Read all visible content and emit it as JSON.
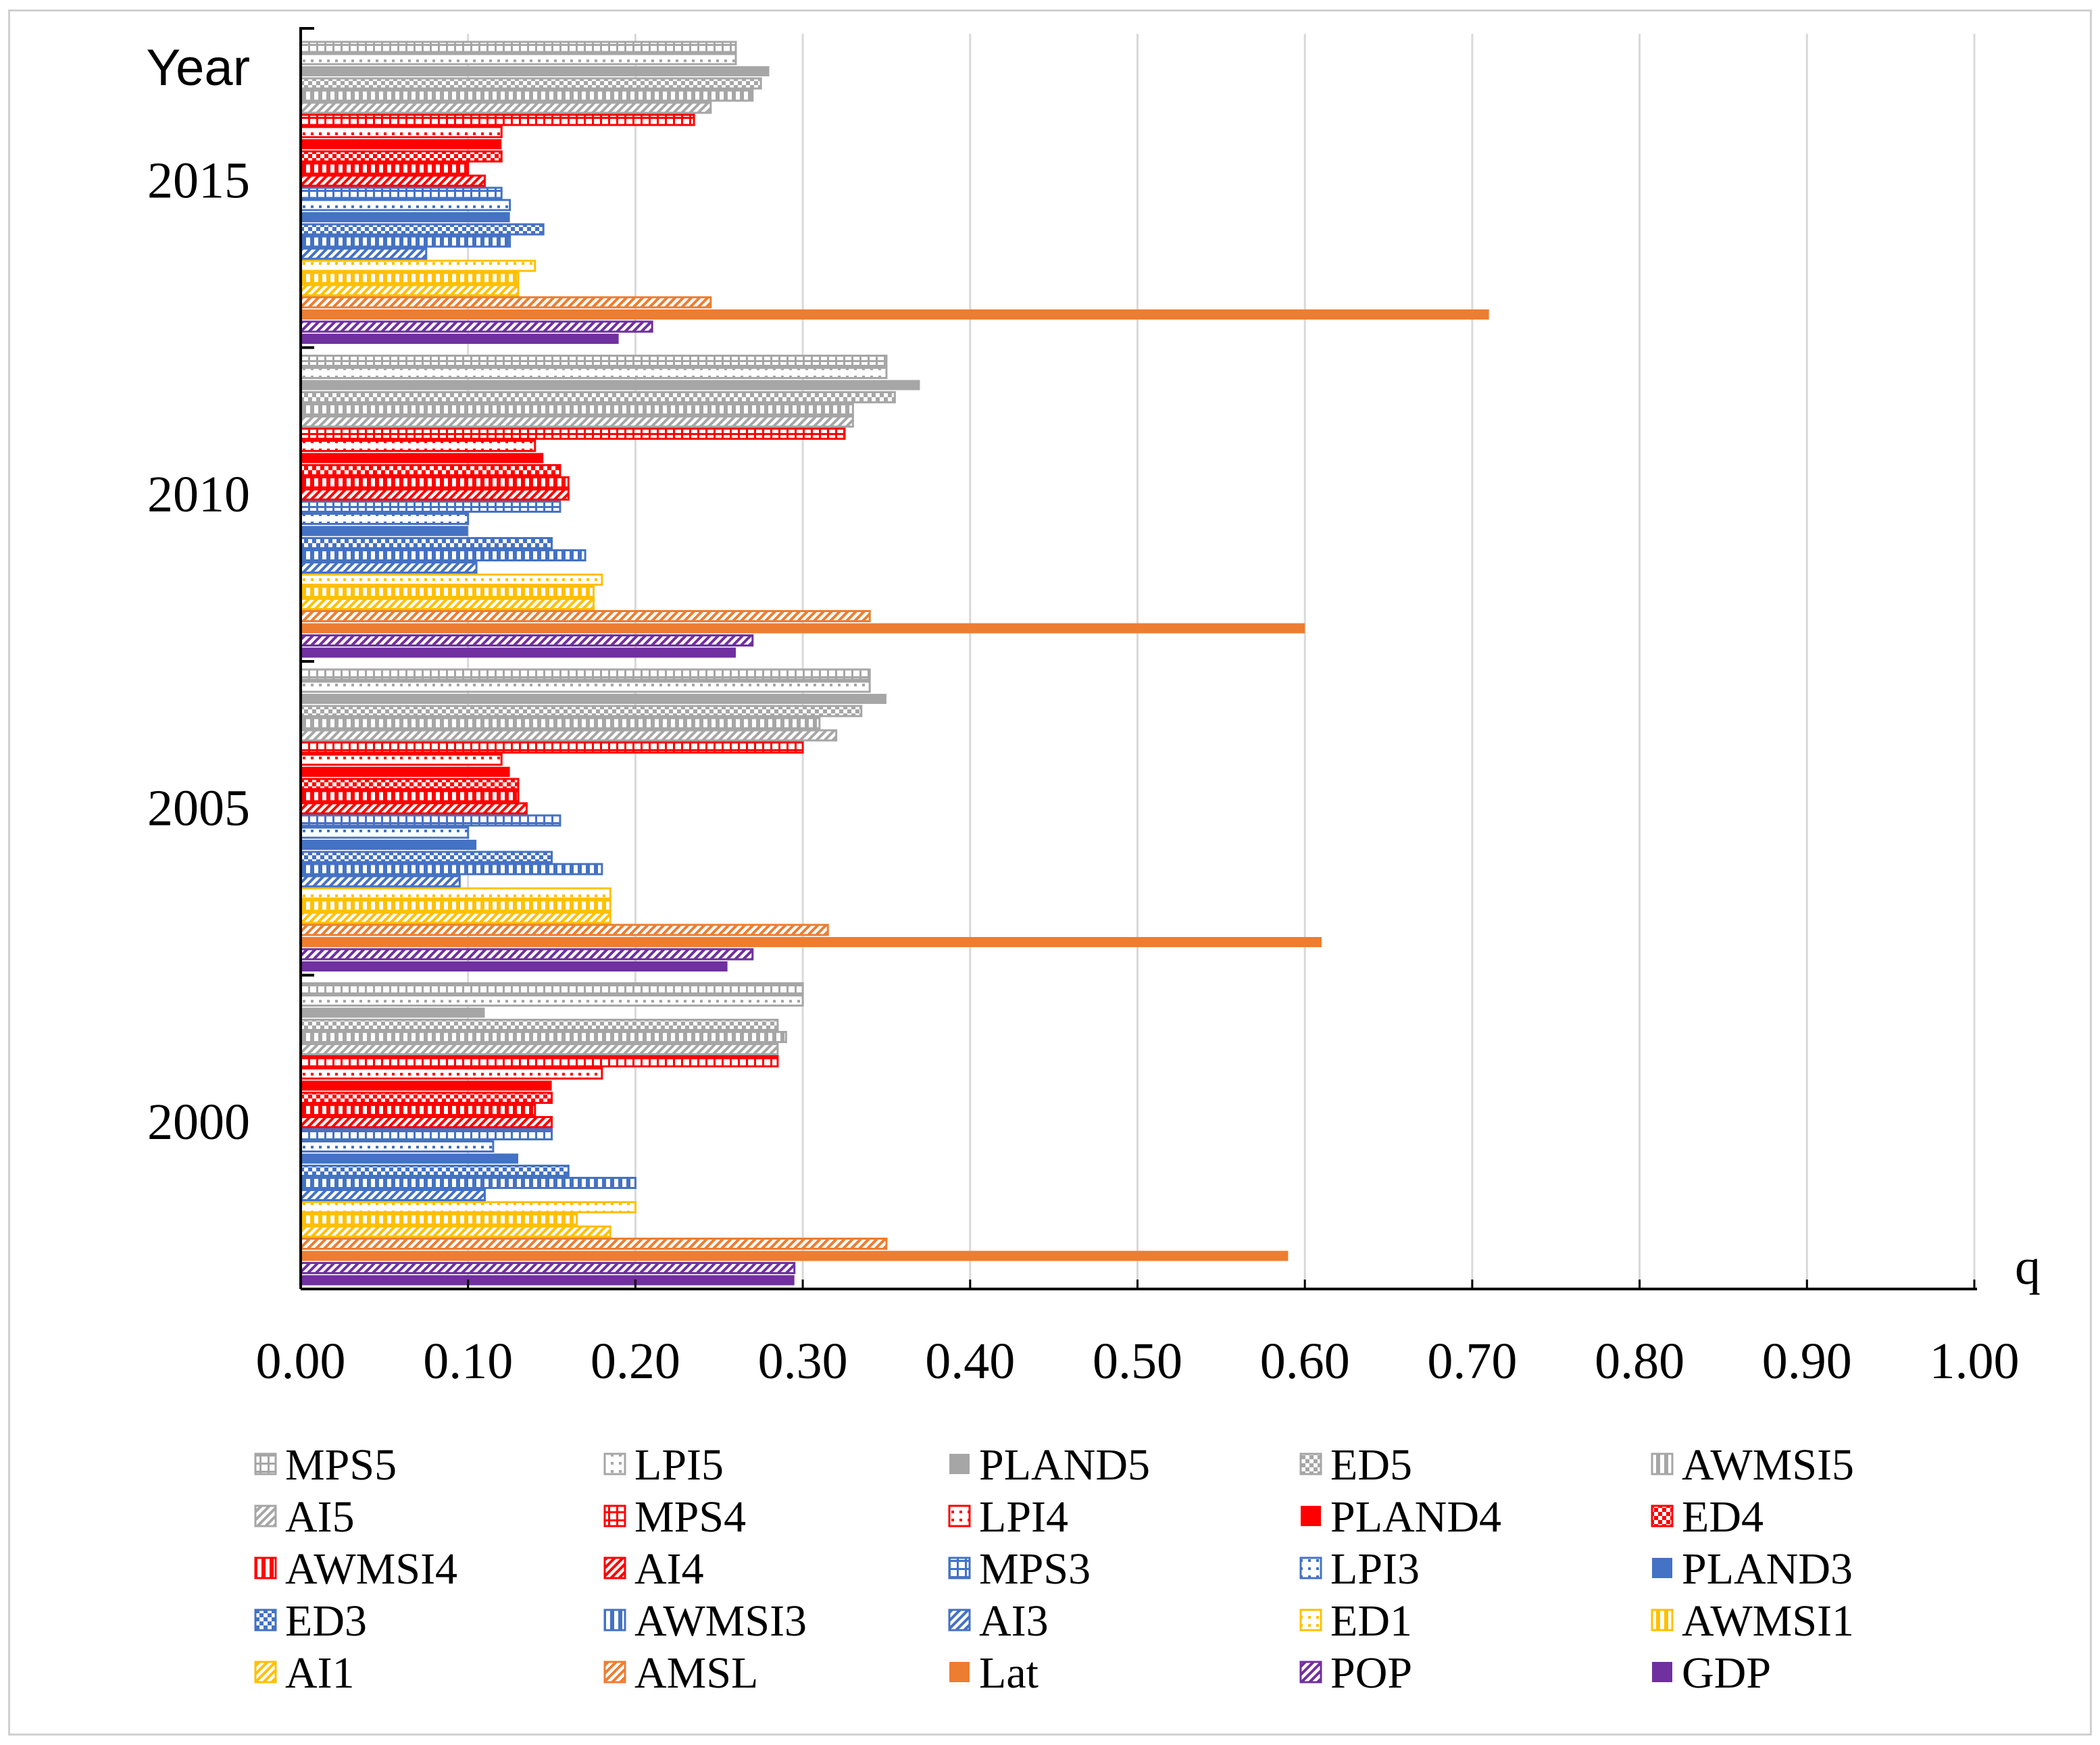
{
  "chart_data": {
    "type": "bar",
    "orientation": "horizontal",
    "xlabel": "q",
    "ylabel": "Year",
    "xlim": [
      0,
      1
    ],
    "xticks": [
      "0.00",
      "0.10",
      "0.20",
      "0.30",
      "0.40",
      "0.50",
      "0.60",
      "0.70",
      "0.80",
      "0.90",
      "1.00"
    ],
    "grid": true,
    "legend_position": "bottom",
    "categories": [
      "2015",
      "2010",
      "2005",
      "2000"
    ],
    "series": [
      {
        "name": "MPS5",
        "color": "#a6a6a6",
        "pattern": "outline-bracket",
        "values": [
          0.26,
          0.35,
          0.34,
          0.3
        ]
      },
      {
        "name": "LPI5",
        "color": "#a6a6a6",
        "pattern": "outline-dots",
        "values": [
          0.26,
          0.35,
          0.34,
          0.3
        ]
      },
      {
        "name": "PLAND5",
        "color": "#a6a6a6",
        "pattern": "solid",
        "values": [
          0.28,
          0.37,
          0.35,
          0.11
        ]
      },
      {
        "name": "ED5",
        "color": "#a6a6a6",
        "pattern": "checker",
        "values": [
          0.275,
          0.355,
          0.335,
          0.285
        ]
      },
      {
        "name": "AWMSI5",
        "color": "#a6a6a6",
        "pattern": "vstripe",
        "values": [
          0.27,
          0.33,
          0.31,
          0.29
        ]
      },
      {
        "name": "AI5",
        "color": "#a6a6a6",
        "pattern": "diagonal",
        "values": [
          0.245,
          0.33,
          0.32,
          0.285
        ]
      },
      {
        "name": "MPS4",
        "color": "#ff0000",
        "pattern": "outline-bracket",
        "values": [
          0.235,
          0.325,
          0.3,
          0.285
        ]
      },
      {
        "name": "LPI4",
        "color": "#ff0000",
        "pattern": "outline-dots",
        "values": [
          0.12,
          0.14,
          0.12,
          0.18
        ]
      },
      {
        "name": "PLAND4",
        "color": "#ff0000",
        "pattern": "solid",
        "values": [
          0.12,
          0.145,
          0.125,
          0.15
        ]
      },
      {
        "name": "ED4",
        "color": "#ff0000",
        "pattern": "checker",
        "values": [
          0.12,
          0.155,
          0.13,
          0.15
        ]
      },
      {
        "name": "AWMSI4",
        "color": "#ff0000",
        "pattern": "vstripe",
        "values": [
          0.1,
          0.16,
          0.13,
          0.14
        ]
      },
      {
        "name": "AI4",
        "color": "#ff0000",
        "pattern": "diagonal",
        "values": [
          0.11,
          0.16,
          0.135,
          0.15
        ]
      },
      {
        "name": "MPS3",
        "color": "#4472c4",
        "pattern": "outline-bracket",
        "values": [
          0.12,
          0.155,
          0.155,
          0.15
        ]
      },
      {
        "name": "LPI3",
        "color": "#4472c4",
        "pattern": "outline-dots",
        "values": [
          0.125,
          0.1,
          0.1,
          0.115
        ]
      },
      {
        "name": "PLAND3",
        "color": "#4472c4",
        "pattern": "solid",
        "values": [
          0.125,
          0.1,
          0.105,
          0.13
        ]
      },
      {
        "name": "ED3",
        "color": "#4472c4",
        "pattern": "checker",
        "values": [
          0.145,
          0.15,
          0.15,
          0.16
        ]
      },
      {
        "name": "AWMSI3",
        "color": "#4472c4",
        "pattern": "vstripe",
        "values": [
          0.125,
          0.17,
          0.18,
          0.2
        ]
      },
      {
        "name": "AI3",
        "color": "#4472c4",
        "pattern": "diagonal",
        "values": [
          0.075,
          0.105,
          0.095,
          0.11
        ]
      },
      {
        "name": "ED1",
        "color": "#ffc000",
        "pattern": "outline-dots",
        "values": [
          0.14,
          0.18,
          0.185,
          0.2
        ]
      },
      {
        "name": "AWMSI1",
        "color": "#ffc000",
        "pattern": "vstripe",
        "values": [
          0.13,
          0.175,
          0.185,
          0.165
        ]
      },
      {
        "name": "AI1",
        "color": "#ffc000",
        "pattern": "diagonal",
        "values": [
          0.13,
          0.175,
          0.185,
          0.185
        ]
      },
      {
        "name": "AMSL",
        "color": "#ed7d31",
        "pattern": "diagonal",
        "values": [
          0.245,
          0.34,
          0.315,
          0.35
        ]
      },
      {
        "name": "Lat",
        "color": "#ed7d31",
        "pattern": "solid",
        "values": [
          0.71,
          0.6,
          0.61,
          0.59
        ]
      },
      {
        "name": "POP",
        "color": "#7030a0",
        "pattern": "diagonal",
        "values": [
          0.21,
          0.27,
          0.27,
          0.295
        ]
      },
      {
        "name": "GDP",
        "color": "#7030a0",
        "pattern": "solid",
        "values": [
          0.19,
          0.26,
          0.255,
          0.295
        ]
      }
    ]
  }
}
